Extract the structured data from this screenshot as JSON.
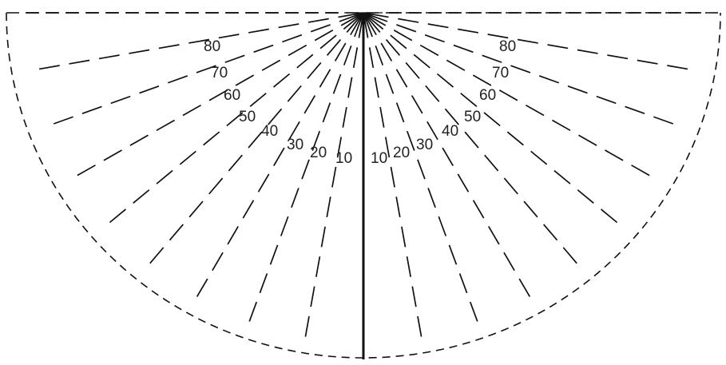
{
  "diagram": {
    "type": "semicircular-angle-protractor",
    "center_line": "solid",
    "ray_style": "dashed",
    "rays_per_side": 9,
    "colors": {
      "background": "#ffffff",
      "lines": "#111111",
      "text": "#222222"
    }
  },
  "left_labels": [
    "10",
    "20",
    "30",
    "40",
    "50",
    "60",
    "70",
    "80"
  ],
  "right_labels": [
    "10",
    "20",
    "30",
    "40",
    "50",
    "60",
    "70",
    "80"
  ]
}
